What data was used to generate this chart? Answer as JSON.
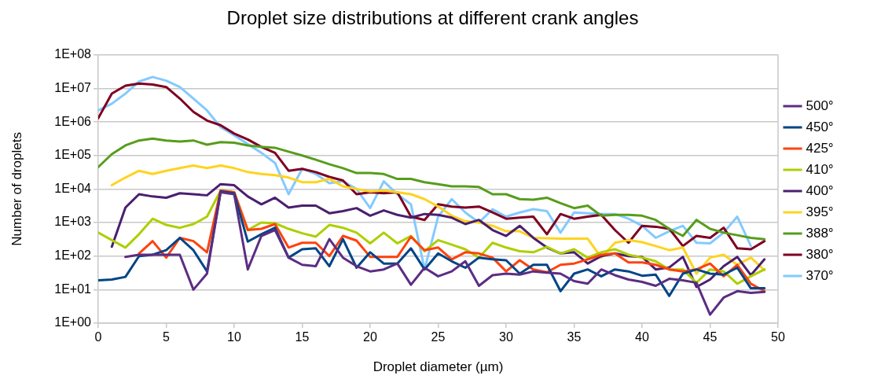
{
  "chart_data": {
    "type": "line",
    "title": "Droplet size distributions at different crank angles",
    "xlabel": "Droplet diameter (µm)",
    "ylabel": "Number of droplets",
    "x": [
      0,
      1,
      2,
      3,
      4,
      5,
      6,
      7,
      8,
      9,
      10,
      11,
      12,
      13,
      14,
      15,
      16,
      17,
      18,
      19,
      20,
      21,
      22,
      23,
      24,
      25,
      26,
      27,
      28,
      29,
      30,
      31,
      32,
      33,
      34,
      35,
      36,
      37,
      38,
      39,
      40,
      41,
      42,
      43,
      44,
      45,
      46,
      47,
      48,
      49
    ],
    "series": [
      {
        "name": "500°",
        "color": "#5c2d82",
        "values": [
          null,
          null,
          95,
          110,
          110,
          110,
          110,
          10,
          30,
          8000,
          7000,
          40,
          400,
          600,
          90,
          55,
          50,
          320,
          90,
          50,
          35,
          40,
          60,
          14,
          45,
          25,
          35,
          70,
          13,
          27,
          30,
          28,
          35,
          32,
          30,
          18,
          15,
          40,
          27,
          20,
          17,
          13,
          21,
          19,
          16,
          1.8,
          5.8,
          9,
          8,
          8.5
        ]
      },
      {
        "name": "450°",
        "color": "#004586",
        "values": [
          19,
          20,
          24,
          100,
          110,
          150,
          350,
          150,
          35,
          8500,
          7500,
          270,
          450,
          700,
          90,
          160,
          170,
          50,
          320,
          45,
          130,
          60,
          60,
          170,
          40,
          120,
          70,
          45,
          90,
          80,
          75,
          30,
          55,
          55,
          9,
          30,
          40,
          25,
          40,
          35,
          26,
          28,
          6.5,
          30,
          40,
          30,
          28,
          45,
          11,
          11
        ]
      },
      {
        "name": "425°",
        "color": "#ff420e",
        "values": [
          null,
          null,
          null,
          120,
          280,
          90,
          350,
          280,
          130,
          9000,
          8000,
          600,
          650,
          900,
          180,
          250,
          250,
          100,
          400,
          290,
          95,
          95,
          95,
          380,
          150,
          180,
          80,
          130,
          120,
          90,
          35,
          75,
          40,
          33,
          55,
          60,
          80,
          110,
          120,
          65,
          65,
          55,
          40,
          35,
          40,
          60,
          25,
          55,
          15,
          9
        ]
      },
      {
        "name": "410°",
        "color": "#aecf00",
        "values": [
          500,
          300,
          180,
          450,
          1300,
          850,
          700,
          900,
          1500,
          9000,
          8000,
          600,
          1000,
          950,
          650,
          480,
          380,
          850,
          700,
          500,
          240,
          500,
          240,
          400,
          140,
          300,
          220,
          160,
          90,
          250,
          180,
          140,
          130,
          190,
          120,
          160,
          90,
          130,
          160,
          110,
          90,
          70,
          40,
          40,
          16,
          40,
          35,
          15,
          25,
          40
        ]
      },
      {
        "name": "400°",
        "color": "#4b1f6f",
        "values": [
          null,
          190,
          2800,
          7000,
          6000,
          5500,
          7500,
          7000,
          6500,
          14000,
          13000,
          6000,
          3500,
          5500,
          2800,
          3200,
          3200,
          1900,
          2200,
          2700,
          1600,
          2300,
          1700,
          1400,
          1800,
          1700,
          1400,
          900,
          1200,
          600,
          400,
          800,
          350,
          180,
          120,
          130,
          60,
          100,
          120,
          100,
          95,
          40,
          46,
          95,
          12,
          20,
          50,
          95,
          27,
          80
        ]
      },
      {
        "name": "395°",
        "color": "#ffd320",
        "values": [
          null,
          13000,
          22000,
          35000,
          28000,
          35000,
          42000,
          50000,
          42000,
          50000,
          42000,
          32000,
          28000,
          26000,
          22000,
          16000,
          16000,
          20000,
          12000,
          10000,
          8500,
          9000,
          8000,
          7000,
          5000,
          3000,
          1600,
          1100,
          1000,
          800,
          550,
          550,
          350,
          340,
          330,
          330,
          330,
          90,
          250,
          300,
          260,
          200,
          150,
          180,
          30,
          90,
          110,
          55,
          90,
          38
        ]
      },
      {
        "name": "388°",
        "color": "#579d1c",
        "values": [
          45000,
          110000,
          200000,
          280000,
          320000,
          280000,
          260000,
          280000,
          210000,
          250000,
          240000,
          200000,
          180000,
          170000,
          130000,
          100000,
          75000,
          55000,
          42000,
          30000,
          30000,
          28000,
          20000,
          20000,
          16000,
          14000,
          12000,
          12000,
          11500,
          7000,
          7000,
          5000,
          4800,
          5500,
          3800,
          2700,
          3200,
          1600,
          1700,
          1700,
          1600,
          1200,
          650,
          400,
          1200,
          650,
          500,
          420,
          350,
          320
        ]
      },
      {
        "name": "380°",
        "color": "#7e0021",
        "values": [
          1300000,
          7000000,
          12000000,
          14000000,
          13000000,
          11000000,
          5000000,
          2000000,
          1100000,
          800000,
          450000,
          300000,
          180000,
          120000,
          35000,
          40000,
          32000,
          23000,
          18000,
          7000,
          8000,
          7500,
          8000,
          1500,
          1200,
          3500,
          3000,
          2800,
          3000,
          2000,
          1300,
          1400,
          1500,
          450,
          1800,
          1300,
          1500,
          1700,
          600,
          250,
          800,
          750,
          650,
          200,
          400,
          350,
          700,
          170,
          160,
          280
        ]
      },
      {
        "name": "370°",
        "color": "#83caff",
        "values": [
          2200000,
          3500000,
          7000000,
          16000000,
          22000000,
          17000000,
          11000000,
          5000000,
          2200000,
          700000,
          400000,
          220000,
          120000,
          60000,
          7000,
          40000,
          28000,
          15000,
          17000,
          10000,
          2700,
          17000,
          7000,
          3500,
          40,
          1500,
          5000,
          2000,
          1000,
          2500,
          1500,
          2000,
          2500,
          2200,
          500,
          2000,
          1900,
          1800,
          1800,
          1300,
          800,
          350,
          550,
          800,
          250,
          240,
          500,
          1500,
          200,
          null
        ]
      }
    ],
    "log": "y",
    "xlim": [
      0,
      50
    ],
    "xticks": [
      0,
      5,
      10,
      15,
      20,
      25,
      30,
      35,
      40,
      45,
      50
    ],
    "ylim": [
      1,
      100000000
    ],
    "yticks": [
      {
        "value": 1,
        "label": "1E+00"
      },
      {
        "value": 10,
        "label": "1E+01"
      },
      {
        "value": 100,
        "label": "1E+02"
      },
      {
        "value": 1000,
        "label": "1E+03"
      },
      {
        "value": 10000,
        "label": "1E+04"
      },
      {
        "value": 100000,
        "label": "1E+05"
      },
      {
        "value": 1000000,
        "label": "1E+06"
      },
      {
        "value": 10000000,
        "label": "1E+07"
      },
      {
        "value": 100000000,
        "label": "1E+08"
      }
    ],
    "grid": "y",
    "legend": "right",
    "marker": "none",
    "line_style": "solid"
  }
}
